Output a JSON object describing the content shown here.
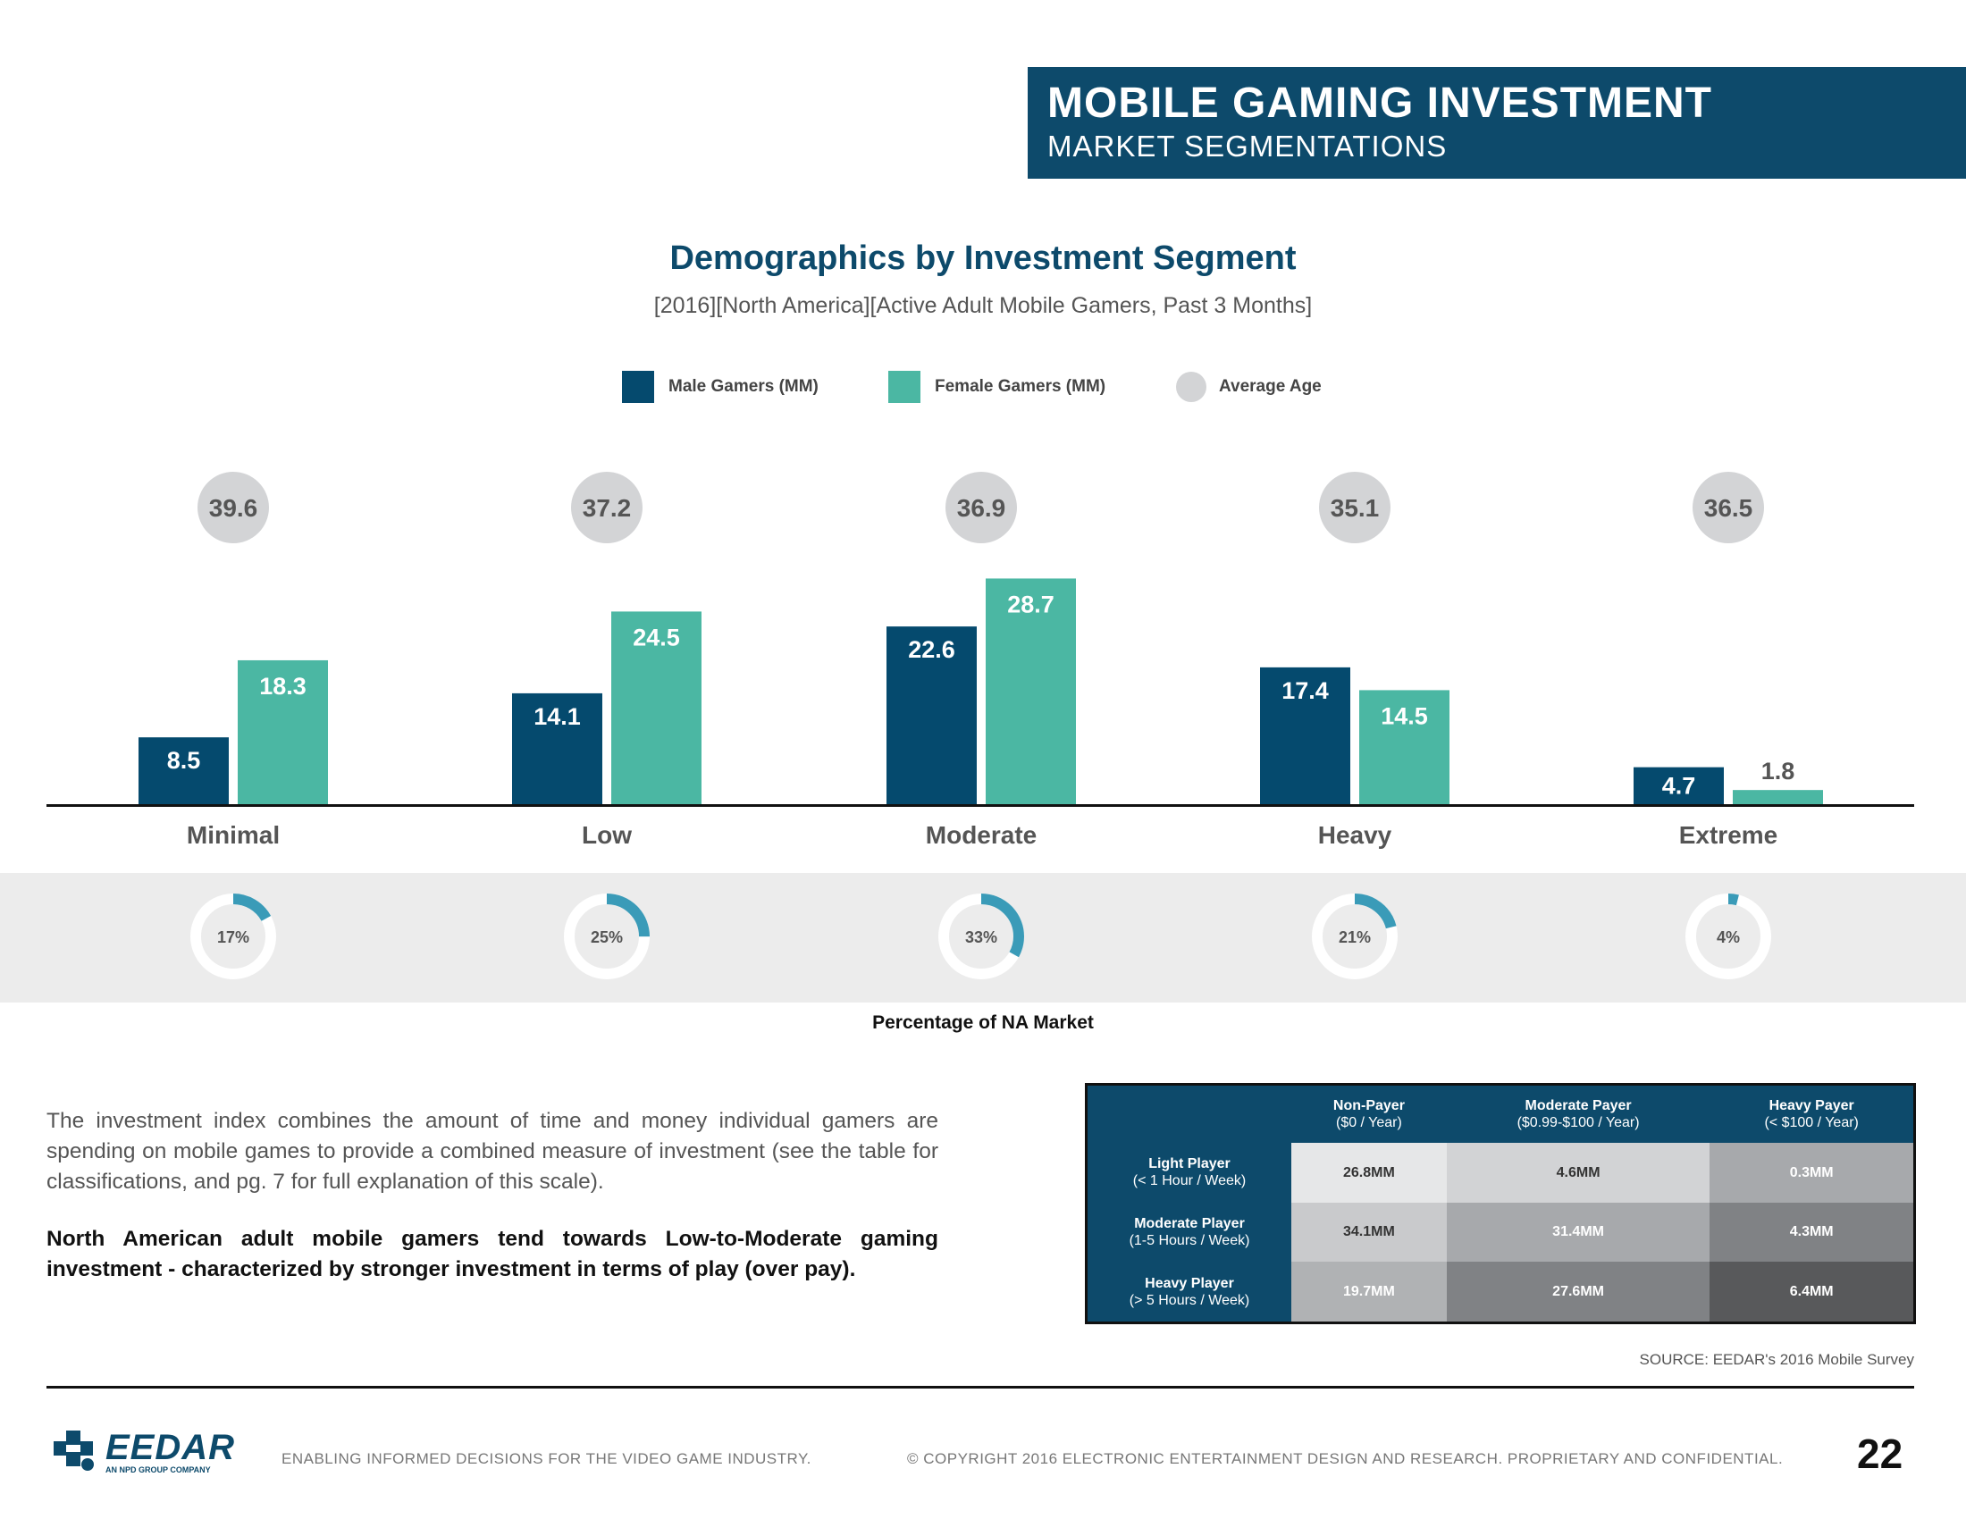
{
  "header": {
    "title": "MOBILE GAMING INVESTMENT",
    "subtitle": "MARKET SEGMENTATIONS"
  },
  "colors": {
    "brand": "#0d4a6b",
    "male": "#054a6e",
    "female": "#4bb7a3",
    "avg_age": "#d3d4d6",
    "donut_fill": "#3a9bb8",
    "donut_track": "#ffffff"
  },
  "chart_data": {
    "type": "bar",
    "title": "Demographics by Investment Segment",
    "subtitle": "[2016][North America][Active Adult Mobile Gamers, Past 3 Months]",
    "categories": [
      "Minimal",
      "Low",
      "Moderate",
      "Heavy",
      "Extreme"
    ],
    "series": [
      {
        "name": "Male Gamers (MM)",
        "values": [
          8.5,
          14.1,
          22.6,
          17.4,
          4.7
        ]
      },
      {
        "name": "Female Gamers (MM)",
        "values": [
          18.3,
          24.5,
          28.7,
          14.5,
          1.8
        ]
      }
    ],
    "average_age_label": "Average Age",
    "average_age": [
      39.6,
      37.2,
      36.9,
      35.1,
      36.5
    ],
    "ylim": [
      0,
      30
    ],
    "grid": false,
    "legend_position": "top-center",
    "market_share": {
      "caption": "Percentage of NA Market",
      "values": [
        17,
        25,
        33,
        21,
        4
      ],
      "labels": [
        "17%",
        "25%",
        "33%",
        "21%",
        "4%"
      ]
    }
  },
  "body": {
    "paragraph": "The investment index combines the amount of time and money individual gamers are spending on mobile games to provide a combined measure of investment (see the table for classifications, and pg. 7 for full explanation of this scale).",
    "conclusion": "North American adult mobile gamers tend towards Low-to-Moderate gaming investment - characterized by stronger investment in terms of play (over pay)."
  },
  "table": {
    "columns": [
      {
        "name": "Non-Payer",
        "detail": "($0 / Year)"
      },
      {
        "name": "Moderate Payer",
        "detail": "($0.99-$100 / Year)"
      },
      {
        "name": "Heavy Payer",
        "detail": "(< $100 / Year)"
      }
    ],
    "rows": [
      {
        "name": "Light Player",
        "detail": "(< 1 Hour / Week)",
        "cells": [
          "26.8MM",
          "4.6MM",
          "0.3MM"
        ]
      },
      {
        "name": "Moderate Player",
        "detail": "(1-5 Hours / Week)",
        "cells": [
          "34.1MM",
          "31.4MM",
          "4.3MM"
        ]
      },
      {
        "name": "Heavy Player",
        "detail": "(> 5 Hours / Week)",
        "cells": [
          "19.7MM",
          "27.6MM",
          "6.4MM"
        ]
      }
    ],
    "cell_colors": [
      [
        "#e6e7e8",
        "#d2d3d5",
        "#a7a9ac"
      ],
      [
        "#c9cacc",
        "#a7a9ac",
        "#808285"
      ],
      [
        "#b0b2b4",
        "#808285",
        "#58595b"
      ]
    ]
  },
  "source": "SOURCE: EEDAR's 2016 Mobile Survey",
  "footer": {
    "logo_text": "EEDAR",
    "logo_tagline": "AN NPD GROUP COMPANY",
    "tagline": "ENABLING INFORMED DECISIONS FOR THE  VIDEO GAME INDUSTRY.",
    "copyright": "© COPYRIGHT 2016 ELECTRONIC ENTERTAINMENT DESIGN AND RESEARCH. PROPRIETARY AND CONFIDENTIAL.",
    "page_number": "22"
  }
}
